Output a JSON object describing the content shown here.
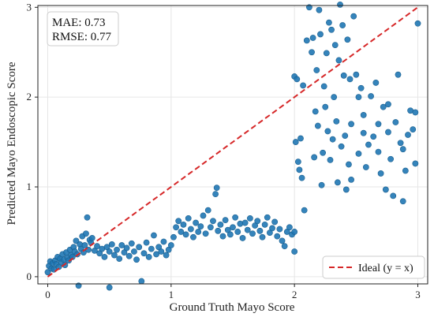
{
  "chart_data": {
    "type": "scatter",
    "title": "",
    "xlabel": "Ground Truth Mayo Score",
    "ylabel": "Predicted Mayo Endoscopic Score",
    "xlim": [
      -0.08,
      3.08
    ],
    "ylim": [
      -0.08,
      3.02
    ],
    "xticks": [
      0,
      1,
      2,
      3
    ],
    "yticks": [
      0,
      1,
      2,
      3
    ],
    "grid": true,
    "annotation": {
      "mae": "MAE: 0.73",
      "rmse": "RMSE: 0.77",
      "position": "top-left"
    },
    "legend": {
      "position": "bottom-right",
      "entries": [
        {
          "label": "Ideal (y = x)",
          "style": "dashed",
          "color": "#d62728"
        }
      ]
    },
    "colors": {
      "points": "#1f77b4",
      "ideal_line": "#d62728",
      "grid": "#e6e6e6"
    },
    "ideal_line": {
      "x": [
        0,
        3
      ],
      "y": [
        0,
        3
      ]
    },
    "series": [
      {
        "points": [
          [
            0.0,
            0.05
          ],
          [
            0.01,
            0.12
          ],
          [
            0.02,
            0.17
          ],
          [
            0.03,
            0.09
          ],
          [
            0.04,
            0.15
          ],
          [
            0.05,
            0.08
          ],
          [
            0.06,
            0.18
          ],
          [
            0.07,
            0.14
          ],
          [
            0.08,
            0.22
          ],
          [
            0.09,
            0.11
          ],
          [
            0.1,
            0.2
          ],
          [
            0.11,
            0.16
          ],
          [
            0.12,
            0.25
          ],
          [
            0.13,
            0.19
          ],
          [
            0.14,
            0.13
          ],
          [
            0.15,
            0.27
          ],
          [
            0.16,
            0.21
          ],
          [
            0.17,
            0.18
          ],
          [
            0.18,
            0.3
          ],
          [
            0.19,
            0.24
          ],
          [
            0.2,
            0.22
          ],
          [
            0.21,
            0.33
          ],
          [
            0.22,
            0.28
          ],
          [
            0.23,
            0.4
          ],
          [
            0.24,
            0.25
          ],
          [
            0.25,
            -0.1
          ],
          [
            0.26,
            0.36
          ],
          [
            0.27,
            0.31
          ],
          [
            0.28,
            0.45
          ],
          [
            0.29,
            0.27
          ],
          [
            0.3,
            0.35
          ],
          [
            0.31,
            0.48
          ],
          [
            0.32,
            0.66
          ],
          [
            0.33,
            0.3
          ],
          [
            0.34,
            0.41
          ],
          [
            0.35,
            0.38
          ],
          [
            0.36,
            0.43
          ],
          [
            0.38,
            0.29
          ],
          [
            0.4,
            0.34
          ],
          [
            0.42,
            0.26
          ],
          [
            0.44,
            0.31
          ],
          [
            0.46,
            0.22
          ],
          [
            0.48,
            0.33
          ],
          [
            0.5,
            0.28
          ],
          [
            0.5,
            -0.12
          ],
          [
            0.52,
            0.36
          ],
          [
            0.54,
            0.24
          ],
          [
            0.56,
            0.3
          ],
          [
            0.58,
            0.2
          ],
          [
            0.6,
            0.35
          ],
          [
            0.62,
            0.27
          ],
          [
            0.64,
            0.32
          ],
          [
            0.66,
            0.23
          ],
          [
            0.68,
            0.37
          ],
          [
            0.7,
            0.28
          ],
          [
            0.72,
            0.19
          ],
          [
            0.74,
            0.33
          ],
          [
            0.76,
            -0.05
          ],
          [
            0.78,
            0.26
          ],
          [
            0.8,
            0.38
          ],
          [
            0.82,
            0.22
          ],
          [
            0.84,
            0.31
          ],
          [
            0.86,
            0.46
          ],
          [
            0.88,
            0.25
          ],
          [
            0.9,
            0.33
          ],
          [
            0.92,
            0.28
          ],
          [
            0.94,
            0.39
          ],
          [
            0.96,
            0.24
          ],
          [
            0.98,
            0.3
          ],
          [
            1.0,
            0.35
          ],
          [
            1.02,
            0.44
          ],
          [
            1.04,
            0.55
          ],
          [
            1.06,
            0.62
          ],
          [
            1.08,
            0.5
          ],
          [
            1.1,
            0.58
          ],
          [
            1.12,
            0.47
          ],
          [
            1.14,
            0.65
          ],
          [
            1.16,
            0.53
          ],
          [
            1.18,
            0.44
          ],
          [
            1.2,
            0.6
          ],
          [
            1.22,
            0.5
          ],
          [
            1.24,
            0.56
          ],
          [
            1.26,
            0.68
          ],
          [
            1.28,
            0.48
          ],
          [
            1.3,
            0.74
          ],
          [
            1.32,
            0.55
          ],
          [
            1.34,
            0.62
          ],
          [
            1.36,
            0.92
          ],
          [
            1.37,
            0.99
          ],
          [
            1.38,
            0.51
          ],
          [
            1.4,
            0.58
          ],
          [
            1.42,
            0.45
          ],
          [
            1.44,
            0.63
          ],
          [
            1.46,
            0.52
          ],
          [
            1.48,
            0.47
          ],
          [
            1.5,
            0.55
          ],
          [
            1.52,
            0.66
          ],
          [
            1.54,
            0.5
          ],
          [
            1.56,
            0.59
          ],
          [
            1.58,
            0.43
          ],
          [
            1.6,
            0.6
          ],
          [
            1.62,
            0.52
          ],
          [
            1.64,
            0.65
          ],
          [
            1.66,
            0.48
          ],
          [
            1.68,
            0.57
          ],
          [
            1.7,
            0.62
          ],
          [
            1.72,
            0.51
          ],
          [
            1.74,
            0.44
          ],
          [
            1.76,
            0.58
          ],
          [
            1.78,
            0.66
          ],
          [
            1.8,
            0.49
          ],
          [
            1.82,
            0.54
          ],
          [
            1.84,
            0.61
          ],
          [
            1.86,
            0.45
          ],
          [
            1.88,
            0.53
          ],
          [
            1.9,
            0.4
          ],
          [
            1.92,
            0.34
          ],
          [
            1.94,
            0.5
          ],
          [
            1.96,
            0.55
          ],
          [
            1.98,
            0.47
          ],
          [
            2.0,
            0.28
          ],
          [
            2.0,
            0.5
          ],
          [
            2.0,
            2.23
          ],
          [
            2.01,
            1.5
          ],
          [
            2.02,
            2.2
          ],
          [
            2.03,
            1.28
          ],
          [
            2.04,
            1.19
          ],
          [
            2.05,
            1.54
          ],
          [
            2.06,
            1.1
          ],
          [
            2.07,
            2.13
          ],
          [
            2.08,
            0.74
          ],
          [
            2.1,
            2.63
          ],
          [
            2.12,
            3.0
          ],
          [
            2.14,
            2.5
          ],
          [
            2.15,
            2.66
          ],
          [
            2.16,
            1.33
          ],
          [
            2.17,
            1.84
          ],
          [
            2.18,
            2.3
          ],
          [
            2.19,
            1.68
          ],
          [
            2.2,
            2.97
          ],
          [
            2.21,
            2.7
          ],
          [
            2.22,
            1.02
          ],
          [
            2.23,
            1.38
          ],
          [
            2.24,
            2.12
          ],
          [
            2.25,
            1.89
          ],
          [
            2.26,
            2.49
          ],
          [
            2.27,
            1.62
          ],
          [
            2.28,
            2.83
          ],
          [
            2.29,
            1.3
          ],
          [
            2.3,
            2.75
          ],
          [
            2.31,
            1.53
          ],
          [
            2.32,
            2.0
          ],
          [
            2.33,
            2.58
          ],
          [
            2.34,
            1.73
          ],
          [
            2.35,
            1.05
          ],
          [
            2.36,
            2.41
          ],
          [
            2.37,
            3.03
          ],
          [
            2.38,
            1.45
          ],
          [
            2.39,
            2.8
          ],
          [
            2.4,
            2.24
          ],
          [
            2.41,
            1.57
          ],
          [
            2.42,
            0.97
          ],
          [
            2.43,
            2.64
          ],
          [
            2.44,
            1.25
          ],
          [
            2.45,
            2.2
          ],
          [
            2.46,
            1.7
          ],
          [
            2.48,
            2.9
          ],
          [
            2.5,
            2.25
          ],
          [
            2.52,
            1.37
          ],
          [
            2.54,
            2.1
          ],
          [
            2.56,
            1.8
          ],
          [
            2.58,
            1.22
          ],
          [
            2.6,
            1.47
          ],
          [
            2.62,
            2.01
          ],
          [
            2.64,
            1.56
          ],
          [
            2.66,
            2.16
          ],
          [
            2.68,
            1.39
          ],
          [
            2.7,
            1.15
          ],
          [
            2.72,
            1.89
          ],
          [
            2.74,
            0.97
          ],
          [
            2.76,
            1.61
          ],
          [
            2.78,
            1.31
          ],
          [
            2.8,
            0.9
          ],
          [
            2.82,
            1.72
          ],
          [
            2.84,
            2.25
          ],
          [
            2.86,
            1.49
          ],
          [
            2.88,
            1.42
          ],
          [
            2.9,
            1.18
          ],
          [
            2.92,
            1.58
          ],
          [
            2.94,
            1.85
          ],
          [
            2.96,
            1.64
          ],
          [
            2.98,
            1.26
          ],
          [
            3.0,
            2.82
          ],
          [
            2.46,
            1.08
          ],
          [
            2.56,
            1.6
          ],
          [
            2.76,
            1.92
          ],
          [
            2.88,
            0.84
          ],
          [
            2.68,
            1.7
          ],
          [
            2.52,
            2.0
          ],
          [
            2.98,
            1.83
          ]
        ]
      }
    ]
  }
}
